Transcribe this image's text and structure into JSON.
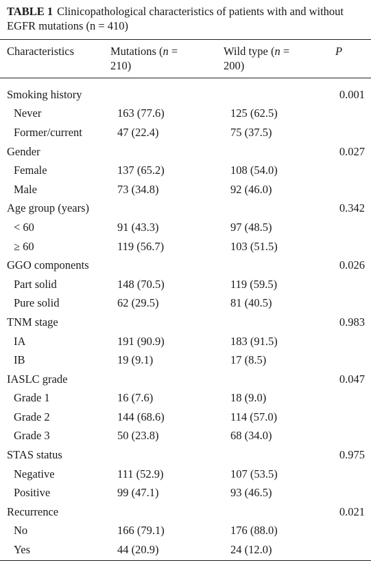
{
  "caption": {
    "label": "TABLE 1",
    "text": "Clinicopathological characteristics of patients with and without EGFR mutations (n = 410)"
  },
  "header": {
    "characteristics": "Characteristics",
    "mutations_a": "Mutations (",
    "mutations_n": "n",
    "mutations_b": " =",
    "mutations_line2": "210)",
    "wild_a": "Wild type (",
    "wild_n": "n",
    "wild_b": " =",
    "wild_line2": "200)",
    "p": "P"
  },
  "rows": [
    {
      "label": "Smoking history",
      "mut": "",
      "wt": "",
      "p": "0.001",
      "sub": false
    },
    {
      "label": "Never",
      "mut": "163 (77.6)",
      "wt": "125 (62.5)",
      "p": "",
      "sub": true
    },
    {
      "label": "Former/current",
      "mut": "47 (22.4)",
      "wt": "75 (37.5)",
      "p": "",
      "sub": true
    },
    {
      "label": "Gender",
      "mut": "",
      "wt": "",
      "p": "0.027",
      "sub": false
    },
    {
      "label": "Female",
      "mut": "137 (65.2)",
      "wt": "108 (54.0)",
      "p": "",
      "sub": true
    },
    {
      "label": "Male",
      "mut": "73 (34.8)",
      "wt": "92 (46.0)",
      "p": "",
      "sub": true
    },
    {
      "label": "Age group (years)",
      "mut": "",
      "wt": "",
      "p": "0.342",
      "sub": false
    },
    {
      "label": "< 60",
      "mut": "91 (43.3)",
      "wt": "97 (48.5)",
      "p": "",
      "sub": true
    },
    {
      "label": "≥ 60",
      "mut": "119 (56.7)",
      "wt": "103 (51.5)",
      "p": "",
      "sub": true
    },
    {
      "label": "GGO components",
      "mut": "",
      "wt": "",
      "p": "0.026",
      "sub": false
    },
    {
      "label": "Part solid",
      "mut": "148 (70.5)",
      "wt": "119 (59.5)",
      "p": "",
      "sub": true
    },
    {
      "label": "Pure solid",
      "mut": "62 (29.5)",
      "wt": "81 (40.5)",
      "p": "",
      "sub": true
    },
    {
      "label": "TNM stage",
      "mut": "",
      "wt": "",
      "p": "0.983",
      "sub": false
    },
    {
      "label": "IA",
      "mut": "191 (90.9)",
      "wt": "183 (91.5)",
      "p": "",
      "sub": true
    },
    {
      "label": "IB",
      "mut": "19 (9.1)",
      "wt": "17 (8.5)",
      "p": "",
      "sub": true
    },
    {
      "label": "IASLC grade",
      "mut": "",
      "wt": "",
      "p": "0.047",
      "sub": false
    },
    {
      "label": "Grade 1",
      "mut": "16 (7.6)",
      "wt": "18 (9.0)",
      "p": "",
      "sub": true
    },
    {
      "label": "Grade 2",
      "mut": "144 (68.6)",
      "wt": "114 (57.0)",
      "p": "",
      "sub": true
    },
    {
      "label": "Grade 3",
      "mut": "50 (23.8)",
      "wt": "68 (34.0)",
      "p": "",
      "sub": true
    },
    {
      "label": "STAS status",
      "mut": "",
      "wt": "",
      "p": "0.975",
      "sub": false
    },
    {
      "label": "Negative",
      "mut": "111 (52.9)",
      "wt": "107 (53.5)",
      "p": "",
      "sub": true
    },
    {
      "label": "Positive",
      "mut": "99 (47.1)",
      "wt": "93 (46.5)",
      "p": "",
      "sub": true
    },
    {
      "label": "Recurrence",
      "mut": "",
      "wt": "",
      "p": "0.021",
      "sub": false
    },
    {
      "label": "No",
      "mut": "166 (79.1)",
      "wt": "176 (88.0)",
      "p": "",
      "sub": true
    },
    {
      "label": "Yes",
      "mut": "44 (20.9)",
      "wt": "24 (12.0)",
      "p": "",
      "sub": true
    }
  ]
}
